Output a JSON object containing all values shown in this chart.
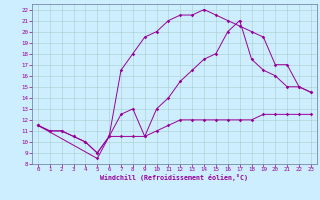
{
  "xlabel": "Windchill (Refroidissement éolien,°C)",
  "bg_color": "#cceeff",
  "line_color": "#990099",
  "grid_color": "#aacccc",
  "xlim": [
    -0.5,
    23.5
  ],
  "ylim": [
    8,
    22.5
  ],
  "xticks": [
    0,
    1,
    2,
    3,
    4,
    5,
    6,
    7,
    8,
    9,
    10,
    11,
    12,
    13,
    14,
    15,
    16,
    17,
    18,
    19,
    20,
    21,
    22,
    23
  ],
  "yticks": [
    8,
    9,
    10,
    11,
    12,
    13,
    14,
    15,
    16,
    17,
    18,
    19,
    20,
    21,
    22
  ],
  "lines": [
    {
      "x": [
        0,
        1,
        2,
        3,
        4,
        5,
        6,
        7,
        8,
        9,
        10,
        11,
        12,
        13,
        14,
        15,
        16,
        17,
        18,
        19,
        20,
        21,
        22,
        23
      ],
      "y": [
        11.5,
        11.0,
        11.0,
        10.5,
        10.0,
        9.0,
        10.5,
        10.5,
        10.5,
        10.5,
        11.0,
        11.5,
        12.0,
        12.0,
        12.0,
        12.0,
        12.0,
        12.0,
        12.0,
        12.5,
        12.5,
        12.5,
        12.5,
        12.5
      ]
    },
    {
      "x": [
        0,
        1,
        2,
        3,
        4,
        5,
        6,
        7,
        8,
        9,
        10,
        11,
        12,
        13,
        14,
        15,
        16,
        17,
        18,
        19,
        20,
        21,
        22,
        23
      ],
      "y": [
        11.5,
        11.0,
        11.0,
        10.5,
        10.0,
        9.0,
        10.5,
        12.5,
        13.0,
        10.5,
        13.0,
        14.0,
        15.5,
        16.5,
        17.5,
        18.0,
        20.0,
        21.0,
        17.5,
        16.5,
        16.0,
        15.0,
        15.0,
        14.5
      ]
    },
    {
      "x": [
        0,
        5,
        6,
        7,
        8,
        9,
        10,
        11,
        12,
        13,
        14,
        15,
        16,
        17,
        18,
        19,
        20,
        21,
        22,
        23
      ],
      "y": [
        11.5,
        8.5,
        10.5,
        16.5,
        18.0,
        19.5,
        20.0,
        21.0,
        21.5,
        21.5,
        22.0,
        21.5,
        21.0,
        20.5,
        20.0,
        19.5,
        17.0,
        17.0,
        15.0,
        14.5
      ]
    }
  ]
}
